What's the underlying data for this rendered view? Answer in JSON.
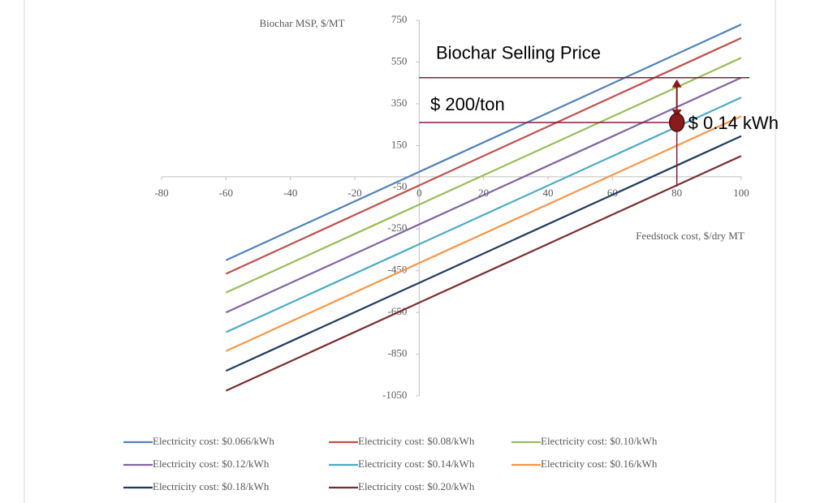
{
  "chart_data": {
    "type": "line",
    "y_axis_label": "Biochar MSP, $/MT",
    "x_axis_label": "Feedstock cost, $/dry MT",
    "x": [
      -60,
      100
    ],
    "series": [
      {
        "name": "Electricity cost: $0.066/kWh",
        "color": "#4f81bd",
        "values": [
          -400,
          730
        ]
      },
      {
        "name": "Electricity cost: $0.08/kWh",
        "color": "#c0504d",
        "values": [
          -465,
          665
        ]
      },
      {
        "name": "Electricity cost: $0.10/kWh",
        "color": "#9bbb59",
        "values": [
          -555,
          570
        ]
      },
      {
        "name": "Electricity cost: $0.12/kWh",
        "color": "#8064a2",
        "values": [
          -650,
          475
        ]
      },
      {
        "name": "Electricity cost: $0.14/kWh",
        "color": "#4bacc6",
        "values": [
          -745,
          380
        ]
      },
      {
        "name": "Electricity cost: $0.16/kWh",
        "color": "#f79646",
        "values": [
          -835,
          290
        ]
      },
      {
        "name": "Electricity cost: $0.18/kWh",
        "color": "#1f3a5f",
        "values": [
          -930,
          195
        ]
      },
      {
        "name": "Electricity cost: $0.20/kWh",
        "color": "#7b2c2c",
        "values": [
          -1025,
          100
        ]
      }
    ],
    "xlim": [
      -80,
      100
    ],
    "xticks": [
      -80,
      -60,
      -40,
      -20,
      0,
      20,
      40,
      60,
      80,
      100
    ],
    "ylim": [
      -1050,
      750
    ],
    "yticks": [
      750,
      550,
      350,
      150,
      -50,
      -250,
      -450,
      -650,
      -850,
      -1050
    ],
    "annotations": {
      "selling_price": {
        "text": "Biochar Selling Price",
        "y": 475
      },
      "difference": {
        "text": "$ 200/ton",
        "y": 260
      },
      "point": {
        "text": "$ 0.14 kWh",
        "x": 80,
        "y": 260,
        "color": "#8b1a1a"
      }
    }
  }
}
